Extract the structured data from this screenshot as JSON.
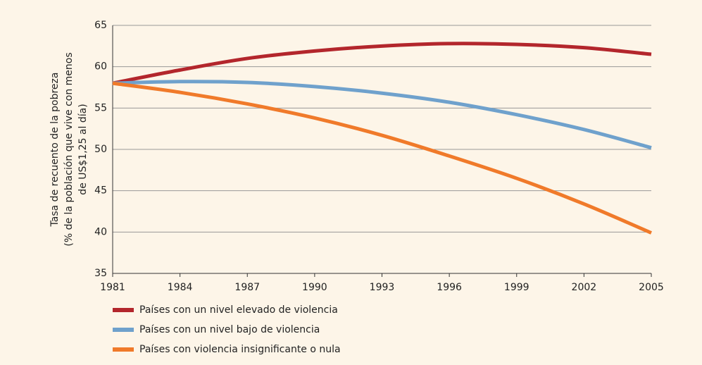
{
  "chart_data": {
    "type": "line",
    "ylabel": [
      "Tasa de recuento de la pobreza",
      "(% de la población que vive con menos",
      "de US$1,25 al día)"
    ],
    "categories": [
      "1981",
      "1984",
      "1987",
      "1990",
      "1993",
      "1996",
      "1999",
      "2002",
      "2005"
    ],
    "series": [
      {
        "name": "Países con un nivel elevado de violencia",
        "color": "#b3262c",
        "values": [
          58,
          59.6,
          61,
          61.9,
          62.5,
          62.8,
          62.7,
          62.3,
          61.5
        ]
      },
      {
        "name": "Países con un nivel bajo de violencia",
        "color": "#6fa1cc",
        "values": [
          58,
          58.2,
          58.1,
          57.6,
          56.8,
          55.7,
          54.2,
          52.4,
          50.2
        ]
      },
      {
        "name": "Países con violencia insignificante o nula",
        "color": "#f07a2a",
        "values": [
          58,
          56.9,
          55.5,
          53.8,
          51.7,
          49.2,
          46.5,
          43.4,
          39.9
        ]
      }
    ],
    "ylim": [
      35,
      65
    ],
    "yticks": [
      35,
      40,
      45,
      50,
      55,
      60,
      65
    ],
    "grid": true,
    "legend": "bottom-left"
  }
}
